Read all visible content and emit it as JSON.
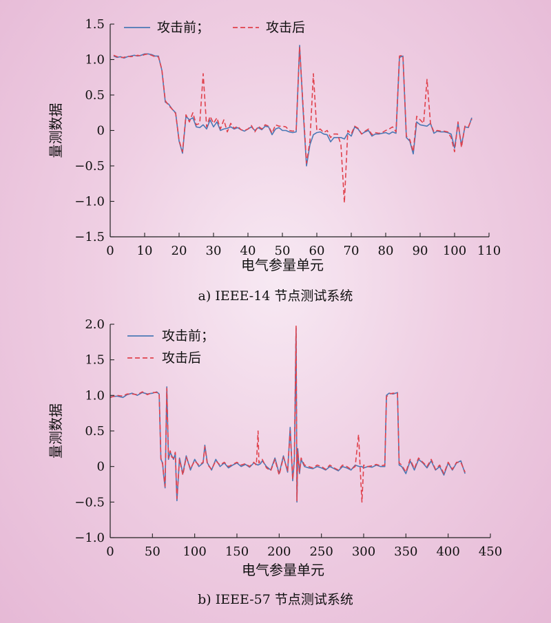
{
  "chart_data": [
    {
      "type": "line",
      "caption": "a) IEEE-14 节点测试系统",
      "xlabel": "电气参量单元",
      "ylabel": "量测数据",
      "xlim": [
        0,
        110
      ],
      "ylim": [
        -1.5,
        1.5
      ],
      "xticks": [
        0,
        10,
        20,
        30,
        40,
        50,
        60,
        70,
        80,
        90,
        100,
        110
      ],
      "yticks": [
        -1.5,
        -1.0,
        -0.5,
        0,
        0.5,
        1.0,
        1.5
      ],
      "ytick_labels": [
        "−1.5",
        "−1.0",
        "−0.5",
        "0",
        "0.5",
        "1.0",
        "1.5"
      ],
      "legend": {
        "entries": [
          "攻击前；",
          "攻击后"
        ],
        "layout": "inline",
        "placement": "top-left"
      },
      "series": [
        {
          "name": "攻击前；",
          "color": "#4a78b5",
          "style": "solid",
          "x": [
            1,
            2,
            3,
            4,
            5,
            6,
            7,
            8,
            9,
            10,
            11,
            12,
            13,
            14,
            15,
            16,
            17,
            18,
            19,
            20,
            21,
            22,
            23,
            24,
            25,
            26,
            27,
            28,
            29,
            30,
            31,
            32,
            33,
            34,
            35,
            36,
            37,
            38,
            39,
            40,
            41,
            42,
            43,
            44,
            45,
            46,
            47,
            48,
            49,
            50,
            51,
            52,
            53,
            54,
            55,
            56,
            57,
            58,
            59,
            60,
            61,
            62,
            63,
            64,
            65,
            66,
            67,
            68,
            69,
            70,
            71,
            72,
            73,
            74,
            75,
            76,
            77,
            78,
            79,
            80,
            81,
            82,
            83,
            84,
            85,
            86,
            87,
            88,
            89,
            90,
            91,
            92,
            93,
            94,
            95,
            96,
            97,
            98,
            99,
            100,
            101,
            102,
            103,
            104,
            105
          ],
          "y": [
            1.05,
            1.03,
            1.04,
            1.02,
            1.04,
            1.05,
            1.06,
            1.05,
            1.06,
            1.08,
            1.08,
            1.07,
            1.05,
            1.05,
            0.85,
            0.4,
            0.37,
            0.3,
            0.25,
            -0.15,
            -0.32,
            0.2,
            0.15,
            0.18,
            0.05,
            0.04,
            0.08,
            0.02,
            0.15,
            0.05,
            0.12,
            0.0,
            0.02,
            0.03,
            0.05,
            0.02,
            0.04,
            0.01,
            -0.01,
            0.02,
            0.05,
            0.0,
            0.04,
            0.01,
            0.06,
            0.05,
            -0.06,
            0.02,
            0.04,
            0.0,
            0.0,
            -0.02,
            -0.03,
            -0.02,
            1.2,
            0.3,
            -0.5,
            -0.2,
            -0.06,
            -0.03,
            -0.02,
            -0.05,
            -0.06,
            -0.16,
            -0.1,
            -0.1,
            -0.1,
            -0.12,
            -0.04,
            -0.08,
            0.05,
            0.02,
            -0.05,
            -0.02,
            0.0,
            -0.08,
            -0.05,
            -0.05,
            -0.04,
            -0.03,
            -0.05,
            -0.02,
            -0.04,
            1.03,
            1.05,
            -0.1,
            -0.15,
            -0.33,
            0.12,
            0.08,
            0.07,
            0.06,
            0.1,
            -0.04,
            -0.01,
            -0.02,
            -0.02,
            -0.03,
            -0.05,
            -0.25,
            0.1,
            -0.21,
            0.05,
            0.04,
            0.18
          ]
        },
        {
          "name": "攻击后",
          "color": "#e0414c",
          "style": "dashed",
          "x": [
            1,
            2,
            3,
            4,
            5,
            6,
            7,
            8,
            9,
            10,
            11,
            12,
            13,
            14,
            15,
            16,
            17,
            18,
            19,
            20,
            21,
            22,
            23,
            24,
            25,
            26,
            27,
            28,
            29,
            30,
            31,
            32,
            33,
            34,
            35,
            36,
            37,
            38,
            39,
            40,
            41,
            42,
            43,
            44,
            45,
            46,
            47,
            48,
            49,
            50,
            51,
            52,
            53,
            54,
            55,
            56,
            57,
            58,
            59,
            60,
            61,
            62,
            63,
            64,
            65,
            66,
            67,
            68,
            69,
            70,
            71,
            72,
            73,
            74,
            75,
            76,
            77,
            78,
            79,
            80,
            81,
            82,
            83,
            84,
            85,
            86,
            87,
            88,
            89,
            90,
            91,
            92,
            93,
            94,
            95,
            96,
            97,
            98,
            99,
            100,
            101,
            102,
            103,
            104,
            105
          ],
          "y": [
            1.06,
            1.04,
            1.03,
            1.03,
            1.05,
            1.04,
            1.05,
            1.06,
            1.05,
            1.07,
            1.08,
            1.06,
            1.04,
            1.04,
            0.86,
            0.42,
            0.35,
            0.3,
            0.24,
            -0.14,
            -0.3,
            0.22,
            0.12,
            0.25,
            0.08,
            0.1,
            0.8,
            0.05,
            0.2,
            0.1,
            0.18,
            0.02,
            0.15,
            -0.02,
            0.1,
            0.03,
            0.06,
            0.01,
            0.0,
            0.02,
            0.07,
            -0.02,
            0.06,
            0.02,
            0.08,
            0.06,
            -0.04,
            0.08,
            0.06,
            0.06,
            0.05,
            0.0,
            -0.01,
            0.0,
            1.18,
            0.35,
            -0.46,
            -0.15,
            0.8,
            0.0,
            0.02,
            -0.03,
            0.0,
            -0.1,
            -0.05,
            -0.05,
            -0.2,
            -1.02,
            0.0,
            -0.05,
            0.06,
            0.03,
            -0.05,
            -0.01,
            0.02,
            -0.06,
            -0.03,
            -0.04,
            -0.03,
            0.0,
            0.02,
            0.05,
            -0.02,
            1.05,
            1.06,
            -0.08,
            -0.13,
            -0.3,
            0.2,
            0.15,
            0.1,
            0.72,
            0.1,
            -0.02,
            0.0,
            -0.01,
            -0.01,
            -0.02,
            -0.1,
            -0.3,
            0.12,
            -0.24,
            0.06,
            0.05,
            0.16
          ]
        }
      ]
    },
    {
      "type": "line",
      "caption": "b) IEEE-57 节点测试系统",
      "xlabel": "电气参量单元",
      "ylabel": "量测数据",
      "xlim": [
        0,
        450
      ],
      "ylim": [
        -1.0,
        2.0
      ],
      "xticks": [
        0,
        50,
        100,
        150,
        200,
        250,
        300,
        350,
        400,
        450
      ],
      "yticks": [
        -1.0,
        -0.5,
        0,
        0.5,
        1.0,
        1.5,
        2.0
      ],
      "ytick_labels": [
        "−1.0",
        "−0.5",
        "0",
        "0.5",
        "1.0",
        "1.5",
        "2.0"
      ],
      "legend": {
        "entries": [
          "攻击前；",
          "攻击后"
        ],
        "layout": "stacked",
        "placement": "top-left"
      },
      "series": [
        {
          "name": "攻击前；",
          "color": "#4a78b5",
          "style": "solid",
          "x": [
            0,
            8,
            15,
            20,
            26,
            32,
            38,
            44,
            50,
            55,
            58,
            60,
            62,
            63,
            65,
            67,
            69,
            71,
            73,
            75,
            77,
            79,
            82,
            86,
            90,
            95,
            100,
            105,
            110,
            112,
            115,
            120,
            125,
            130,
            135,
            140,
            145,
            150,
            155,
            160,
            165,
            170,
            175,
            178,
            180,
            185,
            190,
            195,
            200,
            205,
            210,
            213,
            216,
            218,
            220,
            221,
            222,
            224,
            226,
            230,
            235,
            240,
            245,
            250,
            255,
            260,
            265,
            270,
            275,
            280,
            285,
            290,
            295,
            298,
            300,
            305,
            310,
            315,
            320,
            325,
            327,
            330,
            335,
            340,
            342,
            345,
            350,
            355,
            360,
            365,
            370,
            375,
            380,
            385,
            390,
            395,
            400,
            405,
            410,
            415,
            420
          ],
          "y": [
            0.98,
            0.99,
            0.97,
            1.01,
            1.03,
            1.0,
            1.04,
            1.02,
            1.03,
            1.05,
            1.02,
            0.1,
            0.05,
            -0.1,
            -0.3,
            1.12,
            0.1,
            0.2,
            0.15,
            0.1,
            0.18,
            -0.48,
            0.12,
            -0.1,
            0.15,
            -0.05,
            0.1,
            0.0,
            0.05,
            0.3,
            0.05,
            -0.05,
            0.1,
            0.0,
            0.05,
            -0.02,
            0.02,
            0.05,
            0.0,
            0.03,
            -0.01,
            0.05,
            0.02,
            0.04,
            0.08,
            0.0,
            -0.05,
            0.12,
            -0.1,
            0.15,
            -0.08,
            0.55,
            -0.2,
            0.1,
            1.95,
            -0.5,
            0.25,
            -0.1,
            0.1,
            0.0,
            -0.02,
            -0.03,
            0.0,
            -0.02,
            -0.05,
            0.0,
            -0.03,
            -0.06,
            0.0,
            -0.02,
            -0.05,
            0.02,
            0.0,
            0.0,
            -0.02,
            0.0,
            -0.01,
            0.02,
            0.0,
            0.0,
            1.0,
            1.03,
            1.02,
            1.04,
            0.02,
            0.0,
            -0.1,
            0.08,
            -0.05,
            0.1,
            0.05,
            -0.02,
            0.08,
            -0.05,
            0.0,
            -0.12,
            0.05,
            -0.05,
            0.05,
            0.08,
            -0.1
          ]
        },
        {
          "name": "攻击后",
          "color": "#e0414c",
          "style": "dashed",
          "x": [
            0,
            8,
            15,
            20,
            26,
            32,
            38,
            44,
            50,
            55,
            58,
            60,
            62,
            63,
            65,
            67,
            69,
            71,
            73,
            75,
            77,
            79,
            82,
            86,
            90,
            95,
            100,
            105,
            110,
            112,
            115,
            120,
            125,
            130,
            135,
            140,
            145,
            150,
            155,
            160,
            165,
            170,
            173,
            175,
            176,
            180,
            185,
            190,
            195,
            200,
            205,
            210,
            213,
            216,
            218,
            220,
            221,
            222,
            224,
            226,
            230,
            235,
            240,
            245,
            250,
            255,
            260,
            265,
            270,
            275,
            280,
            285,
            290,
            294,
            296,
            298,
            300,
            305,
            310,
            315,
            320,
            325,
            327,
            330,
            335,
            340,
            342,
            345,
            350,
            355,
            360,
            365,
            370,
            375,
            380,
            385,
            390,
            395,
            400,
            405,
            410,
            415,
            420
          ],
          "y": [
            0.97,
            1.0,
            0.99,
            1.02,
            1.02,
            1.01,
            1.05,
            1.01,
            1.04,
            1.04,
            1.03,
            0.12,
            0.03,
            -0.08,
            -0.28,
            1.1,
            0.12,
            0.22,
            0.13,
            0.12,
            0.2,
            -0.45,
            0.1,
            -0.12,
            0.13,
            -0.03,
            0.08,
            0.02,
            0.06,
            0.28,
            0.03,
            -0.04,
            0.08,
            0.02,
            0.06,
            0.0,
            0.03,
            0.06,
            0.02,
            0.04,
            0.0,
            0.06,
            0.02,
            0.5,
            0.05,
            0.1,
            -0.02,
            -0.06,
            0.1,
            -0.12,
            0.13,
            -0.06,
            0.5,
            -0.18,
            0.12,
            1.98,
            -0.48,
            0.22,
            -0.08,
            0.12,
            0.02,
            0.0,
            -0.02,
            0.02,
            0.0,
            -0.04,
            0.02,
            -0.02,
            -0.05,
            0.02,
            0.0,
            -0.04,
            0.0,
            0.45,
            -0.05,
            -0.5,
            0.02,
            0.0,
            0.01,
            0.03,
            0.01,
            0.02,
            0.98,
            1.02,
            1.03,
            1.03,
            0.05,
            0.02,
            -0.08,
            0.1,
            -0.03,
            0.12,
            0.06,
            0.0,
            0.1,
            -0.04,
            0.02,
            -0.1,
            0.06,
            -0.04,
            0.06,
            0.06,
            -0.08
          ]
        }
      ]
    }
  ]
}
